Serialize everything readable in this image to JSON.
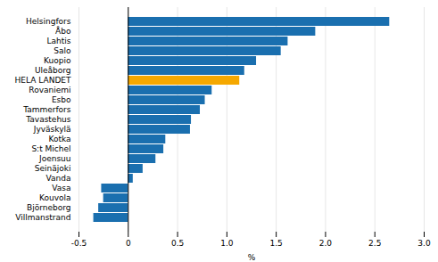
{
  "chart_data": {
    "type": "bar",
    "orientation": "horizontal",
    "categories": [
      "Helsingfors",
      "Åbo",
      "Lahtis",
      "Salo",
      "Kuopio",
      "Uleåborg",
      "HELA LANDET",
      "Rovaniemi",
      "Esbo",
      "Tammerfors",
      "Tavastehus",
      "Jyväskylä",
      "Kotka",
      "S:t Michel",
      "Joensuu",
      "Seinäjoki",
      "Vanda",
      "Vasa",
      "Kouvola",
      "Björneborg",
      "Villmanstrand"
    ],
    "values": [
      2.65,
      1.9,
      1.62,
      1.55,
      1.3,
      1.18,
      1.13,
      0.85,
      0.78,
      0.73,
      0.64,
      0.63,
      0.38,
      0.36,
      0.28,
      0.15,
      0.05,
      -0.27,
      -0.25,
      -0.3,
      -0.35
    ],
    "colors": [
      "#1a6faf",
      "#1a6faf",
      "#1a6faf",
      "#1a6faf",
      "#1a6faf",
      "#1a6faf",
      "#f5a800",
      "#1a6faf",
      "#1a6faf",
      "#1a6faf",
      "#1a6faf",
      "#1a6faf",
      "#1a6faf",
      "#1a6faf",
      "#1a6faf",
      "#1a6faf",
      "#1a6faf",
      "#1a6faf",
      "#1a6faf",
      "#1a6faf",
      "#1a6faf"
    ],
    "xlabel": "%",
    "xlim": [
      -0.5,
      3.0
    ],
    "xticks": [
      -0.5,
      0,
      0.5,
      {
        "value": 1.0,
        "label": "1.0"
      },
      1.5,
      {
        "value": 2.0,
        "label": "2.0"
      },
      2.5,
      {
        "value": 3.0,
        "label": "3.0"
      }
    ],
    "grid": true
  }
}
